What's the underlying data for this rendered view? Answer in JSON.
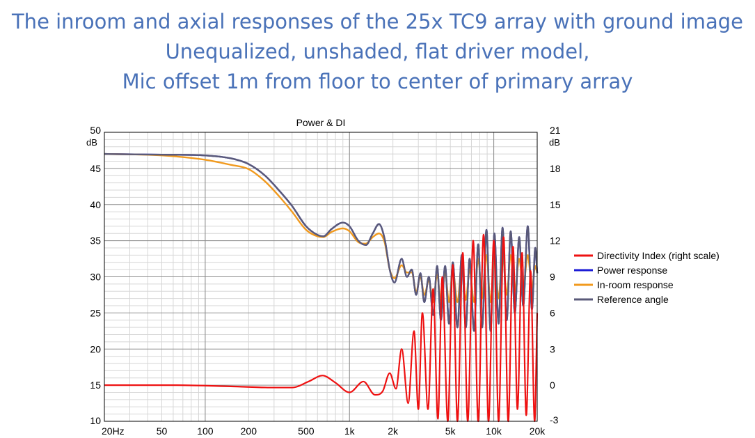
{
  "heading": {
    "line1": "The inroom and axial responses of the 25x TC9 array with ground image",
    "line2": "Unequalized, unshaded, flat driver model,",
    "line3": "Mic offset 1m from floor to center of primary array"
  },
  "chart_data": {
    "type": "line",
    "title": "Power & DI",
    "x_scale": "log",
    "xlim": [
      20,
      20000
    ],
    "x_ticks": [
      {
        "v": 20,
        "label": "20Hz"
      },
      {
        "v": 50,
        "label": "50"
      },
      {
        "v": 100,
        "label": "100"
      },
      {
        "v": 200,
        "label": "200"
      },
      {
        "v": 500,
        "label": "500"
      },
      {
        "v": 1000,
        "label": "1k"
      },
      {
        "v": 2000,
        "label": "2k"
      },
      {
        "v": 5000,
        "label": "5k"
      },
      {
        "v": 10000,
        "label": "10k"
      },
      {
        "v": 20000,
        "label": "20k"
      }
    ],
    "ylim": [
      10,
      50
    ],
    "y_unit": "dB",
    "y_ticks": [
      {
        "v": 50,
        "label": "50"
      },
      {
        "v": 45,
        "label": "45"
      },
      {
        "v": 40,
        "label": "40"
      },
      {
        "v": 35,
        "label": "35"
      },
      {
        "v": 30,
        "label": "30"
      },
      {
        "v": 25,
        "label": "25"
      },
      {
        "v": 20,
        "label": "20"
      },
      {
        "v": 15,
        "label": "15"
      },
      {
        "v": 10,
        "label": "10"
      }
    ],
    "y2lim": [
      -3,
      21
    ],
    "y2_unit": "dB",
    "y2_ticks": [
      {
        "v": 21,
        "label": "21"
      },
      {
        "v": 18,
        "label": "18"
      },
      {
        "v": 15,
        "label": "15"
      },
      {
        "v": 12,
        "label": "12"
      },
      {
        "v": 9,
        "label": "9"
      },
      {
        "v": 6,
        "label": "6"
      },
      {
        "v": 3,
        "label": "3"
      },
      {
        "v": 0,
        "label": "0"
      },
      {
        "v": -3,
        "label": "-3"
      }
    ],
    "grid": true,
    "legend_position": "right",
    "series": [
      {
        "name": "Directivity Index (right scale)",
        "color": "#ee1111",
        "axis": "right",
        "x": [
          20,
          60,
          150,
          300,
          400,
          520,
          650,
          800,
          1000,
          1250,
          1500,
          1700,
          1900,
          2100,
          2300,
          2550,
          2800,
          3000,
          3200,
          3500,
          3800,
          4100,
          4400,
          4800,
          5200,
          5600,
          6100,
          6600,
          7200,
          7800,
          8500,
          9200,
          10000,
          10800,
          11700,
          12600,
          13600,
          14600,
          15700,
          16800,
          18000,
          19200,
          20000
        ],
        "y": [
          0.0,
          0.0,
          -0.1,
          -0.2,
          -0.2,
          0.3,
          0.8,
          0.2,
          -0.6,
          0.3,
          -0.8,
          -0.5,
          1.0,
          -0.3,
          3.0,
          -1.5,
          4.5,
          -2.0,
          6.0,
          -2.0,
          8.0,
          -2.8,
          9.0,
          -3.0,
          10.0,
          -3.0,
          11.0,
          -3.0,
          12.0,
          -3.0,
          12.5,
          -3.0,
          12.0,
          -3.0,
          12.3,
          -3.0,
          11.5,
          -2.0,
          11.0,
          -2.5,
          9.5,
          -3.0,
          6.0
        ]
      },
      {
        "name": "Power response",
        "color": "#1c1cd6",
        "axis": "left",
        "x": [
          20,
          50,
          100,
          150,
          200,
          260,
          330,
          400,
          500,
          600,
          660,
          750,
          900,
          1000,
          1150,
          1300,
          1450,
          1600,
          1750,
          1900,
          2050,
          2300,
          2500,
          2700,
          2900,
          3100,
          3300,
          3550,
          3800,
          4050,
          4300,
          4600,
          4900,
          5200,
          5600,
          6000,
          6400,
          6800,
          7300,
          7800,
          8300,
          8900,
          9500,
          10100,
          10800,
          11500,
          12300,
          13100,
          14000,
          15000,
          16000,
          17200,
          18400,
          19400,
          20000
        ],
        "y": [
          47.0,
          46.9,
          46.8,
          46.4,
          45.6,
          44.0,
          41.8,
          39.8,
          37.0,
          35.8,
          35.6,
          36.6,
          37.5,
          37.0,
          35.0,
          34.4,
          36.0,
          37.3,
          35.3,
          31.0,
          29.2,
          32.5,
          30.0,
          31.0,
          27.5,
          30.5,
          26.5,
          30.0,
          24.7,
          31.5,
          24.0,
          31.5,
          23.5,
          32.0,
          23.0,
          33.0,
          23.0,
          32.5,
          22.5,
          34.5,
          23.0,
          36.5,
          22.5,
          36.0,
          23.5,
          36.8,
          24.0,
          36.3,
          25.0,
          35.5,
          26.0,
          37.0,
          25.5,
          34.0,
          30.5
        ]
      },
      {
        "name": "In-room response",
        "color": "#f19a1e",
        "axis": "left",
        "x": [
          20,
          50,
          100,
          150,
          200,
          260,
          330,
          400,
          500,
          600,
          660,
          750,
          900,
          1000,
          1150,
          1300,
          1450,
          1600,
          1750,
          1900,
          2050,
          2300,
          2500,
          2700,
          2900,
          3100,
          3300,
          3550,
          3800,
          4050,
          4300,
          4600,
          4900,
          5200,
          5600,
          6000,
          6400,
          6800,
          7300,
          7800,
          8300,
          8900,
          9500,
          10100,
          10800,
          11500,
          12300,
          13100,
          14000,
          15000,
          16000,
          17200,
          18400,
          19400,
          20000
        ],
        "y": [
          47.0,
          46.8,
          46.2,
          45.5,
          44.9,
          43.2,
          41.0,
          39.0,
          36.5,
          35.6,
          35.5,
          36.2,
          36.7,
          36.3,
          34.8,
          34.6,
          35.5,
          36.0,
          34.8,
          31.0,
          29.8,
          31.6,
          30.6,
          30.6,
          28.0,
          30.0,
          27.5,
          29.5,
          26.5,
          30.3,
          26.7,
          30.5,
          26.5,
          31.0,
          26.5,
          31.5,
          26.8,
          31.0,
          26.5,
          32.5,
          27.0,
          33.0,
          26.5,
          33.0,
          27.0,
          33.5,
          27.5,
          33.0,
          28.0,
          32.5,
          28.5,
          33.0,
          28.5,
          31.5,
          30.5
        ]
      },
      {
        "name": "Reference angle",
        "color": "#5a5a78",
        "axis": "left",
        "x": [
          20,
          50,
          100,
          150,
          200,
          260,
          330,
          400,
          500,
          600,
          660,
          750,
          900,
          1000,
          1150,
          1300,
          1450,
          1600,
          1750,
          1900,
          2050,
          2300,
          2500,
          2700,
          2900,
          3100,
          3300,
          3550,
          3800,
          4050,
          4300,
          4600,
          4900,
          5200,
          5600,
          6000,
          6400,
          6800,
          7300,
          7800,
          8300,
          8900,
          9500,
          10100,
          10800,
          11500,
          12300,
          13100,
          14000,
          15000,
          16000,
          17200,
          18400,
          19400,
          20000
        ],
        "y": [
          47.0,
          46.9,
          46.8,
          46.4,
          45.6,
          44.0,
          41.8,
          39.8,
          37.0,
          35.8,
          35.6,
          36.6,
          37.5,
          37.0,
          35.0,
          34.4,
          36.0,
          37.3,
          35.3,
          31.0,
          29.2,
          32.5,
          30.0,
          31.0,
          27.5,
          30.5,
          26.5,
          30.0,
          24.7,
          31.5,
          24.0,
          31.5,
          23.5,
          32.0,
          23.0,
          33.0,
          23.0,
          32.5,
          22.5,
          34.5,
          23.0,
          36.5,
          22.5,
          36.0,
          23.5,
          36.8,
          24.0,
          36.3,
          25.0,
          35.5,
          26.0,
          37.0,
          25.5,
          34.0,
          30.5
        ]
      }
    ]
  }
}
